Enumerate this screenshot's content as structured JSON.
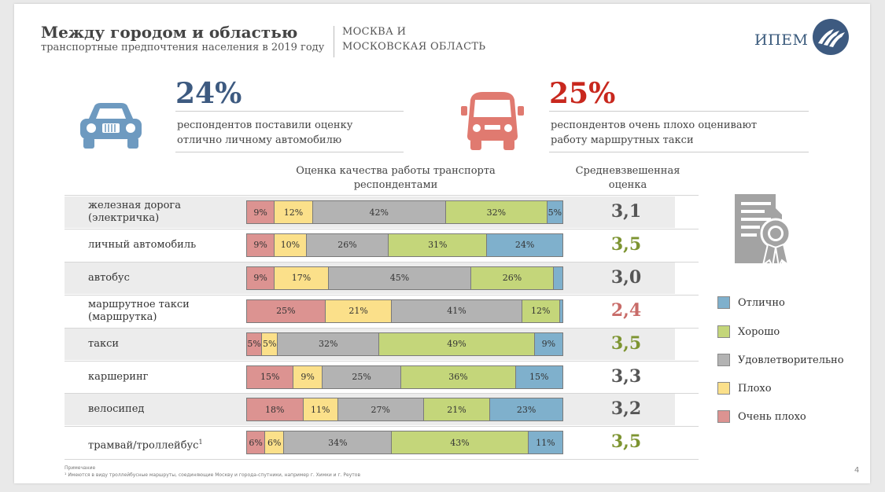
{
  "header": {
    "title": "Между городом и областью",
    "subtitle": "транспортные предпочтения населения в 2019 году",
    "region_line1": "МОСКВА И",
    "region_line2": "МОСКОВСКАЯ ОБЛАСТЬ",
    "brand": "ИПЕМ"
  },
  "highlights": [
    {
      "value": "24%",
      "line1": "респондентов поставили оценку",
      "line2": "отлично личному автомобилю",
      "color": "#3d5a80",
      "icon": "car-icon"
    },
    {
      "value": "25%",
      "line1": "респондентов очень плохо оценивают",
      "line2": "работу маршрутных такси",
      "color": "#c8281e",
      "icon": "minibus-icon"
    }
  ],
  "chart_headings": {
    "bars_line1": "Оценка качества работы транспорта",
    "bars_line2": "респондентами",
    "score_line1": "Средневзвешенная",
    "score_line2": "оценка"
  },
  "legend": [
    {
      "label": "Отлично",
      "color": "#7fb0cc"
    },
    {
      "label": "Хорошо",
      "color": "#c4d67a"
    },
    {
      "label": "Удовлетворительно",
      "color": "#b3b3b3"
    },
    {
      "label": "Плохо",
      "color": "#fbe08a"
    },
    {
      "label": "Очень плохо",
      "color": "#dc9391"
    }
  ],
  "chart_data": {
    "type": "bar",
    "stacked": true,
    "orientation": "horizontal",
    "series_order": [
      "Очень плохо",
      "Плохо",
      "Удовлетворительно",
      "Хорошо",
      "Отлично"
    ],
    "rows": [
      {
        "label_lines": [
          "железная дорога",
          "(электричка)"
        ],
        "footnote": "",
        "values": [
          9,
          12,
          42,
          32,
          5
        ],
        "labels": [
          "9%",
          "12%",
          "42%",
          "32%",
          "5%"
        ],
        "score": "3,1",
        "score_color": "#555555"
      },
      {
        "label_lines": [
          "личный автомобиль"
        ],
        "footnote": "",
        "values": [
          9,
          10,
          26,
          31,
          24
        ],
        "labels": [
          "9%",
          "10%",
          "26%",
          "31%",
          "24%"
        ],
        "score": "3,5",
        "score_color": "#7d9431"
      },
      {
        "label_lines": [
          "автобус"
        ],
        "footnote": "",
        "values": [
          9,
          17,
          45,
          26,
          3
        ],
        "labels": [
          "9%",
          "17%",
          "45%",
          "26%",
          ""
        ],
        "score": "3,0",
        "score_color": "#555555"
      },
      {
        "label_lines": [
          "маршрутное такси",
          "(маршрутка)"
        ],
        "footnote": "",
        "values": [
          25,
          21,
          41,
          12,
          1
        ],
        "labels": [
          "25%",
          "21%",
          "41%",
          "12%",
          ""
        ],
        "score": "2,4",
        "score_color": "#c86b68"
      },
      {
        "label_lines": [
          "такси"
        ],
        "footnote": "",
        "values": [
          5,
          5,
          32,
          49,
          9
        ],
        "labels": [
          "5%",
          "5%",
          "32%",
          "49%",
          "9%"
        ],
        "score": "3,5",
        "score_color": "#7d9431"
      },
      {
        "label_lines": [
          "каршеринг"
        ],
        "footnote": "",
        "values": [
          15,
          9,
          25,
          36,
          15
        ],
        "labels": [
          "15%",
          "9%",
          "25%",
          "36%",
          "15%"
        ],
        "score": "3,3",
        "score_color": "#555555"
      },
      {
        "label_lines": [
          "велосипед"
        ],
        "footnote": "",
        "values": [
          18,
          11,
          27,
          21,
          23
        ],
        "labels": [
          "18%",
          "11%",
          "27%",
          "21%",
          "23%"
        ],
        "score": "3,2",
        "score_color": "#555555"
      },
      {
        "label_lines": [
          "трамвай/троллейбус"
        ],
        "footnote": "1",
        "values": [
          6,
          6,
          34,
          43,
          11
        ],
        "labels": [
          "6%",
          "6%",
          "34%",
          "43%",
          "11%"
        ],
        "score": "3,5",
        "score_color": "#7d9431"
      }
    ]
  },
  "footnotes": {
    "heading": "Примечание",
    "text": "¹ Имеются в виду троллейбусные маршруты, соединяющие Москву и города-спутники, например г. Химки и г. Реутов"
  },
  "page_number": "4"
}
